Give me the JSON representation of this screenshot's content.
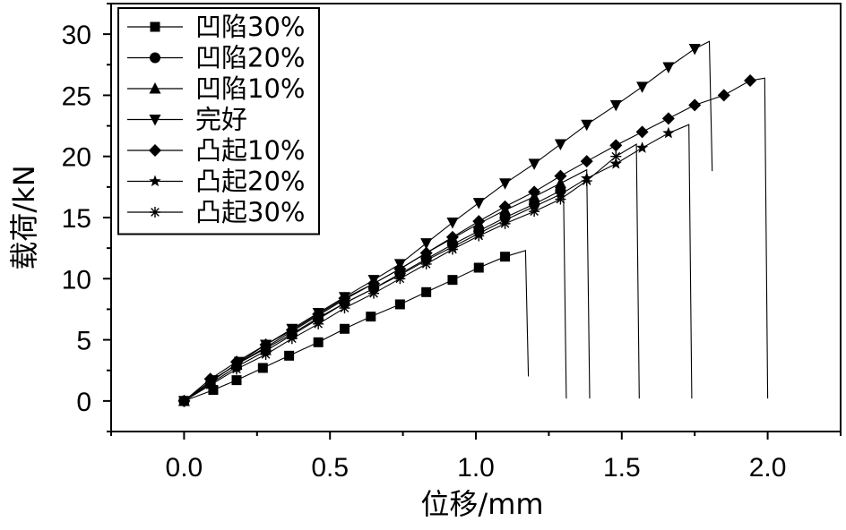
{
  "chart_data": {
    "type": "line",
    "title": "",
    "xlabel": "位移/mm",
    "ylabel": "载荷/kN",
    "xlim": [
      -0.25,
      2.25
    ],
    "ylim": [
      -2.5,
      32.5
    ],
    "xticks": [
      0.0,
      0.5,
      1.0,
      1.5,
      2.0
    ],
    "yticks": [
      0,
      5,
      10,
      15,
      20,
      25,
      30
    ],
    "xtick_labels": [
      "0.0",
      "0.5",
      "1.0",
      "1.5",
      "2.0"
    ],
    "ytick_labels": [
      "0",
      "5",
      "10",
      "15",
      "20",
      "25",
      "30"
    ],
    "grid": false,
    "legend_position": "top-left",
    "series": [
      {
        "name": "凹陷30%",
        "marker": "square",
        "x": [
          0,
          0.1,
          0.18,
          0.27,
          0.36,
          0.46,
          0.55,
          0.64,
          0.74,
          0.83,
          0.92,
          1.01,
          1.1,
          1.17
        ],
        "y": [
          0,
          0.9,
          1.7,
          2.7,
          3.7,
          4.8,
          5.9,
          6.9,
          7.9,
          8.9,
          9.9,
          10.9,
          11.8,
          12.3
        ],
        "drop": {
          "x": 1.18,
          "y": 2.0
        }
      },
      {
        "name": "凹陷20%",
        "marker": "circle",
        "x": [
          0,
          0.09,
          0.18,
          0.28,
          0.37,
          0.46,
          0.55,
          0.65,
          0.74,
          0.83,
          0.92,
          1.01,
          1.1,
          1.2,
          1.29,
          1.3
        ],
        "y": [
          0,
          1.4,
          2.8,
          4.1,
          5.4,
          6.7,
          8.0,
          9.2,
          10.4,
          11.6,
          12.8,
          13.9,
          15.0,
          16.1,
          17.2,
          17.6
        ],
        "drop": {
          "x": 1.31,
          "y": 0.2
        }
      },
      {
        "name": "凹陷10%",
        "marker": "triangle-up",
        "x": [
          0,
          0.09,
          0.18,
          0.28,
          0.37,
          0.46,
          0.55,
          0.65,
          0.74,
          0.83,
          0.92,
          1.01,
          1.1,
          1.2,
          1.29,
          1.38
        ],
        "y": [
          0,
          1.6,
          3.0,
          4.4,
          5.7,
          7.0,
          8.3,
          9.6,
          10.8,
          12.1,
          13.3,
          14.5,
          15.6,
          16.7,
          17.8,
          18.9
        ],
        "drop": {
          "x": 1.39,
          "y": 0.2
        }
      },
      {
        "name": "完好",
        "marker": "triangle-down",
        "x": [
          0,
          0.1,
          0.19,
          0.28,
          0.37,
          0.46,
          0.55,
          0.65,
          0.74,
          0.83,
          0.92,
          1.01,
          1.1,
          1.2,
          1.29,
          1.38,
          1.48,
          1.57,
          1.66,
          1.75,
          1.8
        ],
        "y": [
          0,
          1.7,
          3.2,
          4.6,
          5.9,
          7.2,
          8.5,
          9.9,
          11.2,
          12.9,
          14.6,
          16.2,
          17.8,
          19.4,
          21.0,
          22.6,
          24.2,
          25.7,
          27.3,
          28.8,
          29.4
        ],
        "drop": {
          "x": 1.81,
          "y": 18.8
        }
      },
      {
        "name": "凸起10%",
        "marker": "diamond",
        "x": [
          0,
          0.09,
          0.18,
          0.28,
          0.37,
          0.46,
          0.55,
          0.65,
          0.74,
          0.83,
          0.92,
          1.01,
          1.1,
          1.2,
          1.29,
          1.38,
          1.48,
          1.57,
          1.66,
          1.75,
          1.85,
          1.94,
          1.99
        ],
        "y": [
          0,
          1.8,
          3.2,
          4.6,
          5.8,
          7.1,
          8.4,
          9.6,
          10.8,
          12.1,
          13.4,
          14.7,
          15.9,
          17.1,
          18.4,
          19.6,
          20.9,
          22.0,
          23.1,
          24.2,
          25.0,
          26.2,
          26.4
        ],
        "drop": {
          "x": 2.0,
          "y": 0.2
        }
      },
      {
        "name": "凸起20%",
        "marker": "star",
        "x": [
          0,
          0.09,
          0.18,
          0.28,
          0.37,
          0.46,
          0.55,
          0.65,
          0.74,
          0.83,
          0.92,
          1.01,
          1.1,
          1.2,
          1.29,
          1.38,
          1.48,
          1.57,
          1.66,
          1.73
        ],
        "y": [
          0,
          1.6,
          3.0,
          4.3,
          5.5,
          6.8,
          8.0,
          9.2,
          10.3,
          11.5,
          12.6,
          13.7,
          14.8,
          15.9,
          16.9,
          18.2,
          19.4,
          20.7,
          21.9,
          22.6
        ],
        "drop": {
          "x": 1.74,
          "y": 0.2
        }
      },
      {
        "name": "凸起30%",
        "marker": "asterisk",
        "x": [
          0,
          0.09,
          0.18,
          0.28,
          0.37,
          0.46,
          0.55,
          0.65,
          0.74,
          0.83,
          0.92,
          1.01,
          1.1,
          1.2,
          1.29,
          1.38,
          1.48,
          1.55
        ],
        "y": [
          0,
          1.3,
          2.6,
          3.8,
          5.1,
          6.3,
          7.6,
          8.8,
          10.0,
          11.2,
          12.4,
          13.5,
          14.5,
          15.5,
          16.5,
          18.0,
          20.0,
          21.0
        ],
        "drop": {
          "x": 1.56,
          "y": 0.2
        }
      }
    ]
  }
}
